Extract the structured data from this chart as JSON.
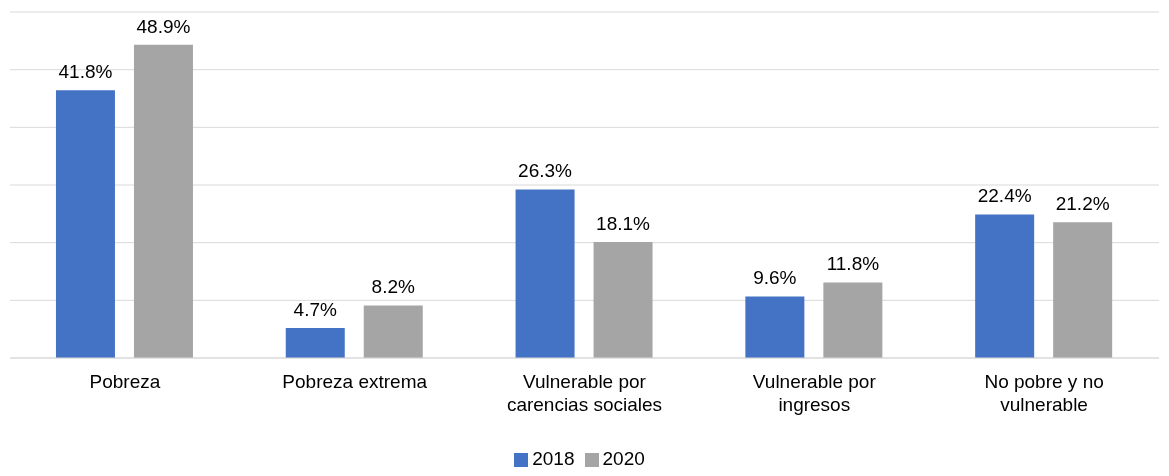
{
  "chart_data": {
    "type": "bar",
    "categories": [
      "Pobreza",
      "Pobreza extrema",
      "Vulnerable por carencias sociales",
      "Vulnerable por ingresos",
      "No pobre y no vulnerable"
    ],
    "series": [
      {
        "name": "2018",
        "color": "#4472c4",
        "values": [
          41.8,
          4.7,
          26.3,
          9.6,
          22.4
        ],
        "value_labels": [
          "41.8%",
          "4.7%",
          "26.3%",
          "9.6%",
          "22.4%"
        ]
      },
      {
        "name": "2020",
        "color": "#a5a5a5",
        "values": [
          48.9,
          8.2,
          18.1,
          11.8,
          21.2
        ],
        "value_labels": [
          "48.9%",
          "8.2%",
          "18.1%",
          "11.8%",
          "21.2%"
        ]
      }
    ],
    "tick_labels": "x",
    "grid": "y",
    "legend": "bottom"
  }
}
